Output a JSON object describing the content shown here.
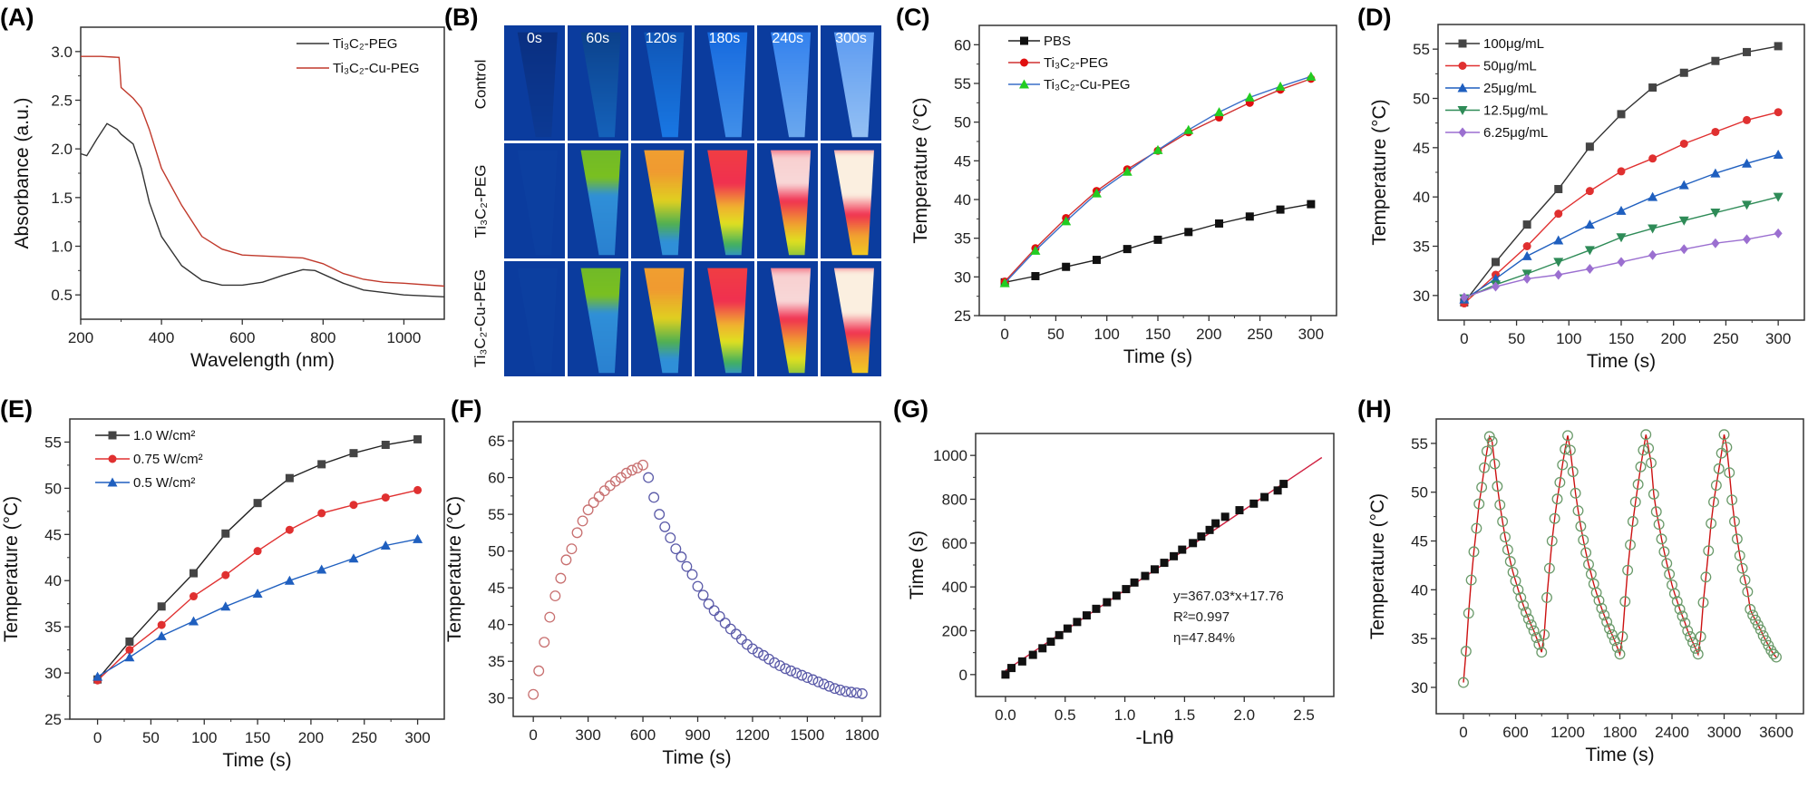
{
  "panel_labels": [
    "(A)",
    "(B)",
    "(C)",
    "(D)",
    "(E)",
    "(F)",
    "(G)",
    "(H)"
  ],
  "panel_b": {
    "columns": [
      "0s",
      "60s",
      "120s",
      "180s",
      "240s",
      "300s"
    ],
    "rows": [
      "Control",
      "Ti₃C₂-PEG",
      "Ti₃C₂-Cu-PEG"
    ],
    "colormap": [
      "#0b3c9e",
      "#2f8fd8",
      "#7ac020",
      "#f0d020",
      "#f0a030",
      "#f03050",
      "#fbefe0"
    ]
  },
  "chart_data": [
    {
      "panel": "A",
      "type": "line",
      "xlabel": "Wavelength (nm)",
      "ylabel": "Absorbance (a.u.)",
      "xlim": [
        200,
        1100
      ],
      "ylim": [
        0.25,
        3.25
      ],
      "xticks": [
        "200",
        "400",
        "600",
        "800",
        "1000"
      ],
      "yticks": [
        "0.5",
        "1.0",
        "1.5",
        "2.0",
        "2.5",
        "3.0"
      ],
      "legend": "top-right",
      "series": [
        {
          "name": "Ti₃C₂-PEG",
          "color": "#333333",
          "marker": "none",
          "x": [
            200,
            215,
            240,
            265,
            290,
            300,
            330,
            350,
            370,
            400,
            450,
            500,
            550,
            600,
            650,
            700,
            750,
            780,
            850,
            900,
            1000,
            1100
          ],
          "y": [
            1.95,
            1.93,
            2.1,
            2.26,
            2.2,
            2.15,
            2.05,
            1.8,
            1.45,
            1.1,
            0.8,
            0.65,
            0.6,
            0.6,
            0.63,
            0.7,
            0.76,
            0.75,
            0.62,
            0.55,
            0.5,
            0.48
          ]
        },
        {
          "name": "Ti₃C₂-Cu-PEG",
          "color": "#c0392b",
          "marker": "none",
          "x": [
            200,
            250,
            295,
            300,
            330,
            350,
            370,
            400,
            450,
            500,
            550,
            600,
            700,
            750,
            800,
            850,
            900,
            950,
            1000,
            1100
          ],
          "y": [
            2.95,
            2.95,
            2.94,
            2.63,
            2.52,
            2.42,
            2.2,
            1.8,
            1.42,
            1.1,
            0.97,
            0.91,
            0.89,
            0.88,
            0.82,
            0.72,
            0.66,
            0.63,
            0.62,
            0.59
          ]
        }
      ]
    },
    {
      "panel": "C",
      "type": "line",
      "xlabel": "Time (s)",
      "ylabel": "Temperature (°C)",
      "xlim": [
        -25,
        325
      ],
      "ylim": [
        25,
        62.5
      ],
      "xticks": [
        "0",
        "50",
        "100",
        "150",
        "200",
        "250",
        "300"
      ],
      "yticks": [
        "25",
        "30",
        "35",
        "40",
        "45",
        "50",
        "55",
        "60"
      ],
      "legend": "top-left",
      "x": [
        0,
        30,
        60,
        90,
        120,
        150,
        180,
        210,
        240,
        270,
        300
      ],
      "series": [
        {
          "name": "PBS",
          "color": "#222222",
          "markerColor": "#111111",
          "marker": "square",
          "y": [
            29.3,
            30.1,
            31.3,
            32.2,
            33.6,
            34.8,
            35.8,
            36.9,
            37.8,
            38.7,
            39.4
          ]
        },
        {
          "name": "Ti₃C₂-PEG",
          "color": "#d03030",
          "markerColor": "#e01010",
          "marker": "circle",
          "y": [
            29.4,
            33.7,
            37.6,
            41.1,
            43.9,
            46.3,
            48.7,
            50.6,
            52.5,
            54.2,
            55.6
          ]
        },
        {
          "name": "Ti₃C₂-Cu-PEG",
          "color": "#3a6ec8",
          "markerColor": "#22cc22",
          "marker": "triangle",
          "y": [
            29.2,
            33.4,
            37.2,
            40.8,
            43.6,
            46.4,
            49.0,
            51.3,
            53.2,
            54.6,
            55.9
          ]
        }
      ]
    },
    {
      "panel": "D",
      "type": "line",
      "xlabel": "Time (s)",
      "ylabel": "Temperature (°C)",
      "xlim": [
        -25,
        325
      ],
      "ylim": [
        27.5,
        57.5
      ],
      "xticks": [
        "0",
        "50",
        "100",
        "150",
        "200",
        "250",
        "300"
      ],
      "yticks": [
        "30",
        "35",
        "40",
        "45",
        "50",
        "55"
      ],
      "legend": "top-left",
      "x": [
        0,
        30,
        60,
        90,
        120,
        150,
        180,
        210,
        240,
        270,
        300
      ],
      "series": [
        {
          "name": "100μg/mL",
          "color": "#333333",
          "markerColor": "#444444",
          "marker": "square",
          "y": [
            29.3,
            33.4,
            37.2,
            40.8,
            45.1,
            48.4,
            51.1,
            52.6,
            53.8,
            54.7,
            55.3
          ]
        },
        {
          "name": "50μg/mL",
          "color": "#e03030",
          "markerColor": "#e03030",
          "marker": "circle",
          "y": [
            29.2,
            32.1,
            35.0,
            38.3,
            40.6,
            42.6,
            43.9,
            45.4,
            46.6,
            47.8,
            48.6
          ]
        },
        {
          "name": "25μg/mL",
          "color": "#1f5fbf",
          "markerColor": "#1f5fbf",
          "marker": "triangle",
          "y": [
            29.6,
            31.7,
            34.0,
            35.6,
            37.2,
            38.6,
            40.0,
            41.2,
            42.4,
            43.4,
            44.3
          ]
        },
        {
          "name": "12.5μg/mL",
          "color": "#2e8b57",
          "markerColor": "#2e8b57",
          "marker": "triangle-down",
          "y": [
            29.7,
            31.1,
            32.2,
            33.4,
            34.6,
            35.9,
            36.8,
            37.6,
            38.4,
            39.2,
            40.0
          ]
        },
        {
          "name": "6.25μg/mL",
          "color": "#9b6fd0",
          "markerColor": "#9b6fd0",
          "marker": "diamond",
          "y": [
            29.8,
            30.9,
            31.7,
            32.1,
            32.7,
            33.4,
            34.1,
            34.7,
            35.3,
            35.7,
            36.3
          ]
        }
      ]
    },
    {
      "panel": "E",
      "type": "line",
      "xlabel": "Time (s)",
      "ylabel": "Temperature (°C)",
      "xlim": [
        -26,
        325
      ],
      "ylim": [
        25,
        57.5
      ],
      "xticks": [
        "0",
        "50",
        "100",
        "150",
        "200",
        "250",
        "300"
      ],
      "yticks": [
        "25",
        "30",
        "35",
        "40",
        "45",
        "50",
        "55"
      ],
      "legend": "top-left",
      "x": [
        0,
        30,
        60,
        90,
        120,
        150,
        180,
        210,
        240,
        270,
        300
      ],
      "series": [
        {
          "name": "1.0 W/cm²",
          "color": "#222222",
          "markerColor": "#444444",
          "marker": "square",
          "y": [
            29.3,
            33.4,
            37.2,
            40.8,
            45.1,
            48.4,
            51.1,
            52.6,
            53.8,
            54.7,
            55.3
          ]
        },
        {
          "name": "0.75 W/cm²",
          "color": "#e03030",
          "markerColor": "#e03030",
          "marker": "circle",
          "y": [
            29.2,
            32.5,
            35.2,
            38.3,
            40.6,
            43.2,
            45.5,
            47.3,
            48.2,
            49.0,
            49.8
          ]
        },
        {
          "name": "0.5 W/cm²",
          "color": "#1f5fbf",
          "markerColor": "#1f5fbf",
          "marker": "triangle",
          "y": [
            29.6,
            31.7,
            34.0,
            35.6,
            37.2,
            38.6,
            40.0,
            41.2,
            42.4,
            43.8,
            44.5
          ]
        }
      ]
    },
    {
      "panel": "F",
      "type": "scatter",
      "xlabel": "Time (s)",
      "ylabel": "Temperature (°C)",
      "xlim": [
        -110,
        1900
      ],
      "ylim": [
        27.5,
        67.6
      ],
      "xticks": [
        "0",
        "300",
        "600",
        "900",
        "1200",
        "1500",
        "1800"
      ],
      "yticks": [
        "30",
        "35",
        "40",
        "45",
        "50",
        "55",
        "60",
        "65"
      ],
      "series": [
        {
          "color": "#c87070",
          "marker": "open-circle",
          "noline": true,
          "x": [
            0,
            30,
            60,
            90,
            120,
            150,
            180,
            210,
            240,
            270,
            300,
            330,
            360,
            390,
            420,
            450,
            480,
            510,
            540,
            570,
            600
          ],
          "y": [
            30.5,
            33.7,
            37.6,
            41.0,
            43.9,
            46.3,
            48.8,
            50.3,
            52.5,
            54.1,
            55.6,
            56.6,
            57.4,
            58.2,
            58.9,
            59.5,
            60.0,
            60.6,
            61.0,
            61.3,
            61.7
          ]
        },
        {
          "color": "#5a5aa8",
          "marker": "open-circle",
          "noline": true,
          "x": [
            630,
            660,
            690,
            720,
            750,
            780,
            810,
            840,
            870,
            900,
            930,
            960,
            990,
            1020,
            1050,
            1080,
            1110,
            1140,
            1170,
            1200,
            1230,
            1260,
            1290,
            1320,
            1350,
            1380,
            1410,
            1440,
            1470,
            1500,
            1530,
            1560,
            1590,
            1620,
            1650,
            1680,
            1710,
            1740,
            1770,
            1800
          ],
          "y": [
            60.0,
            57.3,
            55.0,
            53.3,
            51.8,
            50.3,
            49.2,
            47.9,
            46.8,
            45.2,
            44.0,
            42.8,
            41.9,
            41.1,
            40.2,
            39.4,
            38.7,
            38.0,
            37.3,
            36.7,
            36.2,
            35.8,
            35.3,
            34.8,
            34.4,
            34.0,
            33.7,
            33.4,
            33.1,
            32.8,
            32.5,
            32.2,
            31.9,
            31.6,
            31.3,
            31.1,
            30.9,
            30.8,
            30.7,
            30.6
          ]
        }
      ]
    },
    {
      "panel": "G",
      "type": "scatter",
      "xlabel": "-Lnθ",
      "ylabel": "Time (s)",
      "xlim": [
        -0.25,
        2.75
      ],
      "ylim": [
        -100,
        1100
      ],
      "xticks": [
        "0.0",
        "0.5",
        "1.0",
        "1.5",
        "2.0",
        "2.5"
      ],
      "yticks": [
        "0",
        "200",
        "400",
        "600",
        "800",
        "1000"
      ],
      "annotations": [
        "y=367.03*x+17.76",
        "R²=0.997",
        "η=47.84%"
      ],
      "series": [
        {
          "color": "#d02040",
          "marker": "none",
          "x": [
            0,
            2.65
          ],
          "y": [
            17.76,
            990.39
          ]
        },
        {
          "color": "#111111",
          "markerColor": "#111111",
          "marker": "square",
          "noline": true,
          "x": [
            0.0,
            0.05,
            0.14,
            0.23,
            0.31,
            0.38,
            0.45,
            0.52,
            0.6,
            0.68,
            0.76,
            0.85,
            0.93,
            1.01,
            1.08,
            1.17,
            1.25,
            1.33,
            1.41,
            1.48,
            1.57,
            1.64,
            1.71,
            1.76,
            1.84,
            1.96,
            2.08,
            2.17,
            2.28,
            2.33
          ],
          "y": [
            0,
            30,
            60,
            90,
            120,
            150,
            180,
            210,
            240,
            270,
            300,
            330,
            360,
            390,
            420,
            450,
            480,
            510,
            540,
            570,
            600,
            630,
            660,
            690,
            720,
            750,
            780,
            810,
            840,
            870
          ]
        }
      ]
    },
    {
      "panel": "H",
      "type": "line",
      "xlabel": "Time (s)",
      "ylabel": "Temperature (°C)",
      "xlim": [
        -313,
        3913
      ],
      "ylim": [
        27.3,
        57.5
      ],
      "xticks": [
        "0",
        "600",
        "1200",
        "1800",
        "2400",
        "3000",
        "3600"
      ],
      "yticks": [
        "30",
        "35",
        "40",
        "45",
        "50",
        "55"
      ],
      "series": [
        {
          "color": "#cc1111",
          "markerColor": "#6a9a6a",
          "marker": "open-circle",
          "x": [
            0,
            30,
            60,
            90,
            120,
            150,
            180,
            210,
            240,
            270,
            300,
            330,
            360,
            390,
            420,
            450,
            480,
            510,
            540,
            570,
            600,
            630,
            660,
            690,
            720,
            750,
            780,
            810,
            840,
            870,
            900,
            930,
            960,
            990,
            1020,
            1050,
            1080,
            1110,
            1140,
            1170,
            1200,
            1230,
            1260,
            1290,
            1320,
            1350,
            1380,
            1410,
            1440,
            1470,
            1500,
            1530,
            1560,
            1590,
            1620,
            1650,
            1680,
            1710,
            1740,
            1770,
            1800,
            1830,
            1860,
            1890,
            1920,
            1950,
            1980,
            2010,
            2040,
            2070,
            2100,
            2130,
            2160,
            2190,
            2220,
            2250,
            2280,
            2310,
            2340,
            2370,
            2400,
            2430,
            2460,
            2490,
            2520,
            2550,
            2580,
            2610,
            2640,
            2670,
            2700,
            2730,
            2760,
            2790,
            2820,
            2850,
            2880,
            2910,
            2940,
            2970,
            3000,
            3030,
            3060,
            3090,
            3120,
            3150,
            3180,
            3210,
            3240,
            3270,
            3300,
            3330,
            3360,
            3390,
            3420,
            3450,
            3480,
            3510,
            3540,
            3570,
            3600
          ],
          "y": [
            30.5,
            33.7,
            37.6,
            41.0,
            43.9,
            46.3,
            48.8,
            50.5,
            52.5,
            54.2,
            55.7,
            55.2,
            52.9,
            50.6,
            48.7,
            47.0,
            45.4,
            44.1,
            42.9,
            41.8,
            40.9,
            40.0,
            39.2,
            38.4,
            37.7,
            37.0,
            36.4,
            35.8,
            35.1,
            34.4,
            33.6,
            35.4,
            39.2,
            42.2,
            45.0,
            47.3,
            49.3,
            51.0,
            52.8,
            54.4,
            55.8,
            54.3,
            52.1,
            49.9,
            48.1,
            46.5,
            45.1,
            43.8,
            42.6,
            41.6,
            40.6,
            39.7,
            38.9,
            38.1,
            37.4,
            36.7,
            36.0,
            35.4,
            34.8,
            34.1,
            33.4,
            35.2,
            38.8,
            42.0,
            44.6,
            47.0,
            49.0,
            50.8,
            52.6,
            54.3,
            55.9,
            54.5,
            53.0,
            49.8,
            48.0,
            46.7,
            45.2,
            43.9,
            42.7,
            41.6,
            40.5,
            39.6,
            38.8,
            38.0,
            37.3,
            36.6,
            35.8,
            35.2,
            34.6,
            34.0,
            33.4,
            35.2,
            38.7,
            41.3,
            44.0,
            46.8,
            49.0,
            50.7,
            52.4,
            54.0,
            55.9,
            54.6,
            52.0,
            49.2,
            47.0,
            45.2,
            43.5,
            42.2,
            41.0,
            39.8,
            38.0,
            37.4,
            36.9,
            36.4,
            35.9,
            35.3,
            34.8,
            34.3,
            33.8,
            33.4,
            33.1
          ]
        }
      ]
    }
  ]
}
